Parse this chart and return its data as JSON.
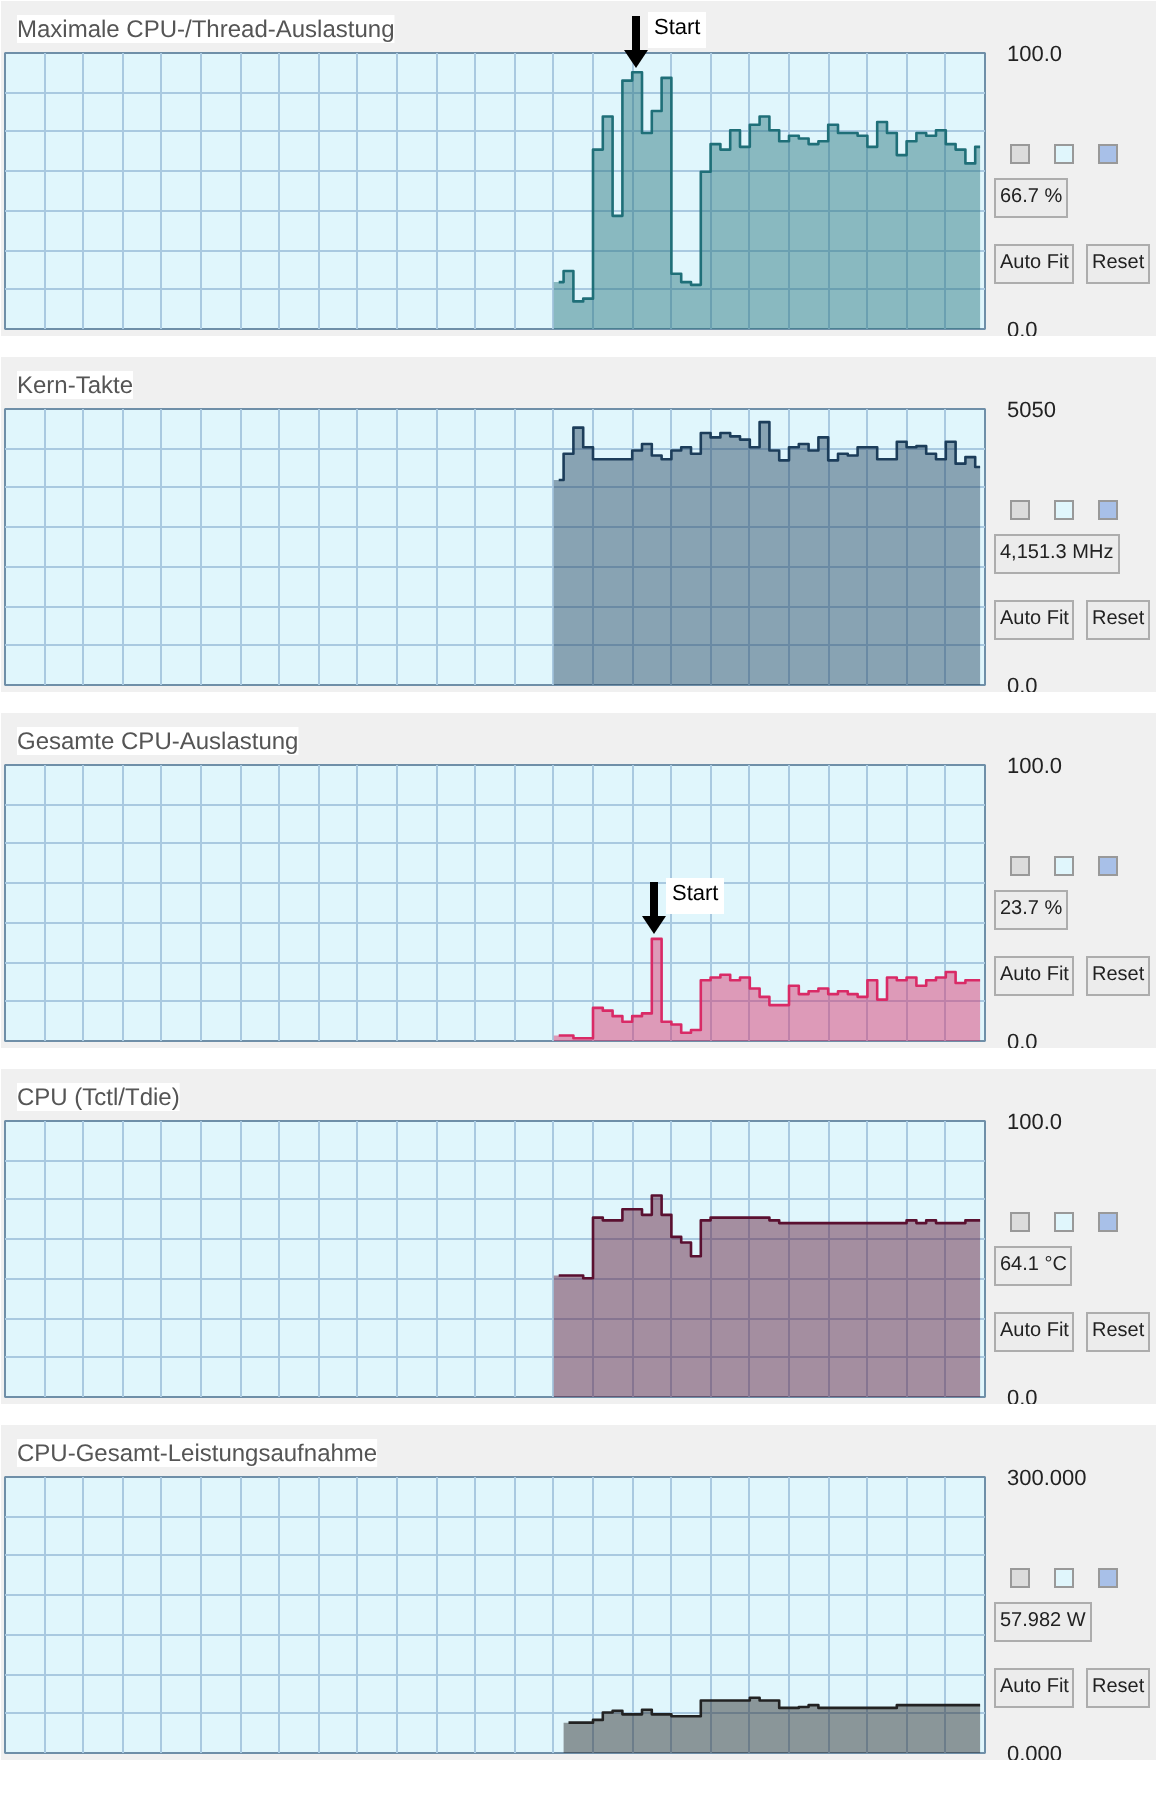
{
  "chart_data": [
    {
      "type": "area",
      "title": "Maximale CPU-/Thread-Auslastung",
      "annotations": [
        "66.7 %",
        "Auto Fit",
        "Reset",
        "Start"
      ],
      "grid": true,
      "tick_labels": "y",
      "ylim": [
        0,
        100
      ],
      "yticks": [
        {
          "value": 0,
          "label": "0.0"
        },
        {
          "value": 14.29,
          "label": null
        },
        {
          "value": 28.57,
          "label": null
        },
        {
          "value": 42.86,
          "label": null
        },
        {
          "value": 57.14,
          "label": null
        },
        {
          "value": 71.43,
          "label": null
        },
        {
          "value": 85.71,
          "label": null
        },
        {
          "value": 100,
          "label": "100.0"
        }
      ],
      "categories": [
        null,
        null,
        null,
        null,
        null,
        null,
        null,
        null,
        null,
        null,
        null,
        null,
        null,
        null,
        null,
        null,
        null,
        null,
        null,
        null,
        null,
        null,
        null,
        null,
        null,
        null,
        null,
        null,
        null,
        null,
        null,
        null,
        null,
        null,
        null,
        null,
        null,
        null,
        null,
        null,
        null,
        null,
        null,
        null,
        null,
        null,
        null,
        null,
        null,
        null,
        null,
        null,
        null,
        null,
        null,
        null,
        null,
        null,
        null,
        null,
        null,
        null,
        null,
        null,
        null,
        null,
        null,
        null,
        null,
        null,
        null,
        null,
        null,
        null,
        null,
        null,
        null,
        null,
        null,
        null,
        null,
        null,
        null,
        null,
        null,
        null,
        null,
        null,
        null,
        null,
        null,
        null,
        null,
        null,
        null,
        null,
        null,
        null,
        null,
        null
      ],
      "series": [
        {
          "color": "#1f6f78",
          "values": [
            null,
            null,
            null,
            null,
            null,
            null,
            null,
            null,
            null,
            null,
            null,
            null,
            null,
            null,
            null,
            null,
            null,
            null,
            null,
            null,
            null,
            null,
            null,
            null,
            null,
            null,
            null,
            null,
            null,
            null,
            null,
            null,
            null,
            null,
            null,
            null,
            null,
            null,
            null,
            null,
            null,
            null,
            null,
            null,
            null,
            null,
            null,
            null,
            null,
            null,
            null,
            null,
            null,
            null,
            null,
            null,
            17,
            21,
            10,
            11,
            65,
            77,
            41,
            90,
            93,
            71,
            79,
            91,
            20,
            17,
            16,
            57,
            67,
            65,
            72,
            66,
            74,
            77,
            72,
            68,
            70,
            69,
            67,
            68,
            74,
            71,
            71,
            70,
            66,
            75,
            71,
            63,
            68,
            71,
            70,
            72,
            67,
            65,
            60,
            66
          ]
        }
      ]
    },
    {
      "type": "area",
      "title": "Kern-Takte",
      "annotations": [
        "4,151.3 MHz",
        "Auto Fit",
        "Reset"
      ],
      "grid": true,
      "tick_labels": "y",
      "ylim": [
        0,
        5050
      ],
      "yticks": [
        {
          "value": 0,
          "label": "0.0"
        },
        {
          "value": 721,
          "label": null
        },
        {
          "value": 1443,
          "label": null
        },
        {
          "value": 2164,
          "label": null
        },
        {
          "value": 2886,
          "label": null
        },
        {
          "value": 3607,
          "label": null
        },
        {
          "value": 4329,
          "label": null
        },
        {
          "value": 5050,
          "label": "5050"
        }
      ],
      "categories": [
        null,
        null,
        null,
        null,
        null,
        null,
        null,
        null,
        null,
        null,
        null,
        null,
        null,
        null,
        null,
        null,
        null,
        null,
        null,
        null,
        null,
        null,
        null,
        null,
        null,
        null,
        null,
        null,
        null,
        null,
        null,
        null,
        null,
        null,
        null,
        null,
        null,
        null,
        null,
        null,
        null,
        null,
        null,
        null,
        null,
        null,
        null,
        null,
        null,
        null,
        null,
        null,
        null,
        null,
        null,
        null,
        null,
        null,
        null,
        null,
        null,
        null,
        null,
        null,
        null,
        null,
        null,
        null,
        null,
        null,
        null,
        null,
        null,
        null,
        null,
        null,
        null,
        null,
        null,
        null,
        null,
        null,
        null,
        null,
        null,
        null,
        null,
        null,
        null,
        null,
        null,
        null,
        null,
        null,
        null,
        null,
        null,
        null,
        null,
        null
      ],
      "series": [
        {
          "color": "#1c3d5a",
          "values": [
            null,
            null,
            null,
            null,
            null,
            null,
            null,
            null,
            null,
            null,
            null,
            null,
            null,
            null,
            null,
            null,
            null,
            null,
            null,
            null,
            null,
            null,
            null,
            null,
            null,
            null,
            null,
            null,
            null,
            null,
            null,
            null,
            null,
            null,
            null,
            null,
            null,
            null,
            null,
            null,
            null,
            null,
            null,
            null,
            null,
            null,
            null,
            null,
            null,
            null,
            null,
            null,
            null,
            null,
            null,
            null,
            3750,
            4230,
            4710,
            4350,
            4130,
            4130,
            4130,
            4130,
            4290,
            4410,
            4200,
            4130,
            4290,
            4350,
            4230,
            4610,
            4530,
            4610,
            4550,
            4490,
            4350,
            4810,
            4290,
            4110,
            4350,
            4410,
            4290,
            4530,
            4110,
            4230,
            4200,
            4350,
            4350,
            4130,
            4130,
            4450,
            4350,
            4370,
            4230,
            4130,
            4450,
            4050,
            4170,
            3990
          ]
        }
      ]
    },
    {
      "type": "area",
      "title": "Gesamte CPU-Auslastung",
      "annotations": [
        "23.7 %",
        "Auto Fit",
        "Reset",
        "Start"
      ],
      "grid": true,
      "tick_labels": "y",
      "ylim": [
        0,
        100
      ],
      "yticks": [
        {
          "value": 0,
          "label": "0.0"
        },
        {
          "value": 14.29,
          "label": null
        },
        {
          "value": 28.57,
          "label": null
        },
        {
          "value": 42.86,
          "label": null
        },
        {
          "value": 57.14,
          "label": null
        },
        {
          "value": 71.43,
          "label": null
        },
        {
          "value": 85.71,
          "label": null
        },
        {
          "value": 100,
          "label": "100.0"
        }
      ],
      "categories": [
        null,
        null,
        null,
        null,
        null,
        null,
        null,
        null,
        null,
        null,
        null,
        null,
        null,
        null,
        null,
        null,
        null,
        null,
        null,
        null,
        null,
        null,
        null,
        null,
        null,
        null,
        null,
        null,
        null,
        null,
        null,
        null,
        null,
        null,
        null,
        null,
        null,
        null,
        null,
        null,
        null,
        null,
        null,
        null,
        null,
        null,
        null,
        null,
        null,
        null,
        null,
        null,
        null,
        null,
        null,
        null,
        null,
        null,
        null,
        null,
        null,
        null,
        null,
        null,
        null,
        null,
        null,
        null,
        null,
        null,
        null,
        null,
        null,
        null,
        null,
        null,
        null,
        null,
        null,
        null,
        null,
        null,
        null,
        null,
        null,
        null,
        null,
        null,
        null,
        null,
        null,
        null,
        null,
        null,
        null,
        null,
        null,
        null,
        null,
        null
      ],
      "series": [
        {
          "color": "#d92a66",
          "values": [
            null,
            null,
            null,
            null,
            null,
            null,
            null,
            null,
            null,
            null,
            null,
            null,
            null,
            null,
            null,
            null,
            null,
            null,
            null,
            null,
            null,
            null,
            null,
            null,
            null,
            null,
            null,
            null,
            null,
            null,
            null,
            null,
            null,
            null,
            null,
            null,
            null,
            null,
            null,
            null,
            null,
            null,
            null,
            null,
            null,
            null,
            null,
            null,
            null,
            null,
            null,
            null,
            null,
            null,
            null,
            null,
            2,
            2,
            1,
            1,
            12,
            11,
            9,
            7,
            9,
            10,
            37,
            7,
            6,
            3,
            4,
            22,
            23,
            24,
            22,
            23,
            19,
            16,
            13,
            13,
            20,
            17,
            18,
            19,
            17,
            18,
            17,
            16,
            22,
            15,
            23,
            22,
            23,
            20,
            22,
            23,
            25,
            21,
            22,
            22
          ]
        }
      ]
    },
    {
      "type": "area",
      "title": "CPU (Tctl/Tdie)",
      "annotations": [
        "64.1 °C",
        "Auto Fit",
        "Reset"
      ],
      "grid": true,
      "tick_labels": "y",
      "ylim": [
        0,
        100
      ],
      "yticks": [
        {
          "value": 0,
          "label": "0.0"
        },
        {
          "value": 14.29,
          "label": null
        },
        {
          "value": 28.57,
          "label": null
        },
        {
          "value": 42.86,
          "label": null
        },
        {
          "value": 57.14,
          "label": null
        },
        {
          "value": 71.43,
          "label": null
        },
        {
          "value": 85.71,
          "label": null
        },
        {
          "value": 100,
          "label": "100.0"
        }
      ],
      "categories": [
        null,
        null,
        null,
        null,
        null,
        null,
        null,
        null,
        null,
        null,
        null,
        null,
        null,
        null,
        null,
        null,
        null,
        null,
        null,
        null,
        null,
        null,
        null,
        null,
        null,
        null,
        null,
        null,
        null,
        null,
        null,
        null,
        null,
        null,
        null,
        null,
        null,
        null,
        null,
        null,
        null,
        null,
        null,
        null,
        null,
        null,
        null,
        null,
        null,
        null,
        null,
        null,
        null,
        null,
        null,
        null,
        null,
        null,
        null,
        null,
        null,
        null,
        null,
        null,
        null,
        null,
        null,
        null,
        null,
        null,
        null,
        null,
        null,
        null,
        null,
        null,
        null,
        null,
        null,
        null,
        null,
        null,
        null,
        null,
        null,
        null,
        null,
        null,
        null,
        null,
        null,
        null,
        null,
        null,
        null,
        null,
        null,
        null,
        null,
        null
      ],
      "series": [
        {
          "color": "#5a1030",
          "values": [
            null,
            null,
            null,
            null,
            null,
            null,
            null,
            null,
            null,
            null,
            null,
            null,
            null,
            null,
            null,
            null,
            null,
            null,
            null,
            null,
            null,
            null,
            null,
            null,
            null,
            null,
            null,
            null,
            null,
            null,
            null,
            null,
            null,
            null,
            null,
            null,
            null,
            null,
            null,
            null,
            null,
            null,
            null,
            null,
            null,
            null,
            null,
            null,
            null,
            null,
            null,
            null,
            null,
            null,
            null,
            null,
            44,
            44,
            44,
            43,
            65,
            64,
            64,
            68,
            68,
            66,
            73,
            66,
            58,
            56,
            51,
            64,
            65,
            65,
            65,
            65,
            65,
            65,
            64,
            63,
            63,
            63,
            63,
            63,
            63,
            63,
            63,
            63,
            63,
            63,
            63,
            63,
            64,
            63,
            64,
            63,
            63,
            63,
            64,
            64
          ]
        }
      ]
    },
    {
      "type": "area",
      "title": "CPU-Gesamt-Leistungsaufnahme",
      "annotations": [
        "57.982 W",
        "Auto Fit",
        "Reset"
      ],
      "grid": true,
      "tick_labels": "y",
      "ylim": [
        0,
        300
      ],
      "yticks": [
        {
          "value": 0,
          "label": "0.000"
        },
        {
          "value": 42.86,
          "label": null
        },
        {
          "value": 85.71,
          "label": null
        },
        {
          "value": 128.57,
          "label": null
        },
        {
          "value": 171.43,
          "label": null
        },
        {
          "value": 214.29,
          "label": null
        },
        {
          "value": 257.14,
          "label": null
        },
        {
          "value": 300,
          "label": "300.000"
        }
      ],
      "categories": [
        null,
        null,
        null,
        null,
        null,
        null,
        null,
        null,
        null,
        null,
        null,
        null,
        null,
        null,
        null,
        null,
        null,
        null,
        null,
        null,
        null,
        null,
        null,
        null,
        null,
        null,
        null,
        null,
        null,
        null,
        null,
        null,
        null,
        null,
        null,
        null,
        null,
        null,
        null,
        null,
        null,
        null,
        null,
        null,
        null,
        null,
        null,
        null,
        null,
        null,
        null,
        null,
        null,
        null,
        null,
        null,
        null,
        null,
        null,
        null,
        null,
        null,
        null,
        null,
        null,
        null,
        null,
        null,
        null,
        null,
        null,
        null,
        null,
        null,
        null,
        null,
        null,
        null,
        null,
        null,
        null,
        null,
        null,
        null,
        null,
        null,
        null,
        null,
        null,
        null,
        null,
        null,
        null,
        null,
        null,
        null,
        null,
        null,
        null,
        null
      ],
      "series": [
        {
          "color": "#222222",
          "values": [
            null,
            null,
            null,
            null,
            null,
            null,
            null,
            null,
            null,
            null,
            null,
            null,
            null,
            null,
            null,
            null,
            null,
            null,
            null,
            null,
            null,
            null,
            null,
            null,
            null,
            null,
            null,
            null,
            null,
            null,
            null,
            null,
            null,
            null,
            null,
            null,
            null,
            null,
            null,
            null,
            null,
            null,
            null,
            null,
            null,
            null,
            null,
            null,
            null,
            null,
            null,
            null,
            null,
            null,
            null,
            null,
            null,
            33,
            33,
            33,
            36,
            44,
            46,
            42,
            42,
            47,
            42,
            42,
            40,
            40,
            40,
            57,
            57,
            57,
            57,
            57,
            60,
            57,
            57,
            49,
            49,
            50,
            52,
            49,
            49,
            49,
            49,
            49,
            49,
            49,
            49,
            52,
            52,
            52,
            52,
            52,
            52,
            52,
            52,
            52
          ]
        }
      ]
    }
  ]
}
